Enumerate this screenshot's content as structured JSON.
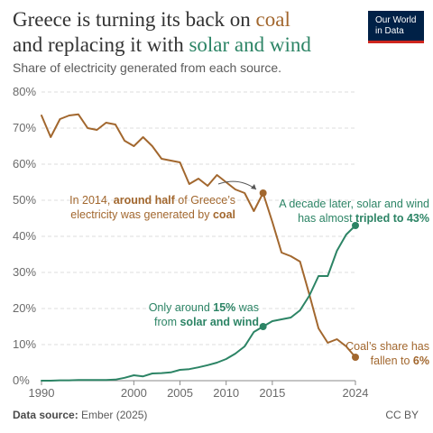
{
  "header": {
    "title_line1_prefix": "Greece is turning its back on ",
    "title_coal": "coal",
    "title_line2_prefix": "and replacing it with ",
    "title_solar": "solar and wind",
    "subtitle": "Share of electricity generated from each source."
  },
  "logo": {
    "line1": "Our World",
    "line2": "in Data"
  },
  "footer": {
    "source_label": "Data source:",
    "source_value": "Ember (2025)",
    "license": "CC BY"
  },
  "colors": {
    "coal": "#a2672e",
    "solar_wind": "#2c8465",
    "grid": "#d9d9d9",
    "text": "#5b5b5b"
  },
  "chart_data": {
    "type": "line",
    "title": "Greece is turning its back on coal and replacing it with solar and wind",
    "subtitle": "Share of electricity generated from each source.",
    "xlabel": "",
    "ylabel": "",
    "xlim": [
      1990,
      2024
    ],
    "ylim": [
      0,
      80
    ],
    "x_ticks": [
      "1990",
      "2000",
      "2005",
      "2010",
      "2015",
      "2024"
    ],
    "y_ticks": [
      "0%",
      "10%",
      "20%",
      "30%",
      "40%",
      "50%",
      "60%",
      "70%",
      "80%"
    ],
    "grid": true,
    "series": [
      {
        "name": "coal",
        "color": "#a2672e",
        "x": [
          1990,
          1991,
          1992,
          1993,
          1994,
          1995,
          1996,
          1997,
          1998,
          1999,
          2000,
          2001,
          2002,
          2003,
          2004,
          2005,
          2006,
          2007,
          2008,
          2009,
          2010,
          2011,
          2012,
          2013,
          2014,
          2015,
          2016,
          2017,
          2018,
          2019,
          2020,
          2021,
          2022,
          2023,
          2024
        ],
        "values": [
          73.5,
          67.5,
          72.5,
          73.5,
          73.8,
          70,
          69.5,
          71.5,
          71,
          66.5,
          65,
          67.5,
          65,
          61.5,
          61,
          60.5,
          54.5,
          56,
          54,
          57,
          55,
          53,
          52,
          47,
          52,
          44,
          35.5,
          34.5,
          33,
          24,
          14.5,
          10.5,
          11.5,
          9.5,
          6.5
        ]
      },
      {
        "name": "solar and wind",
        "color": "#2c8465",
        "x": [
          1990,
          1991,
          1992,
          1993,
          1994,
          1995,
          1996,
          1997,
          1998,
          1999,
          2000,
          2001,
          2002,
          2003,
          2004,
          2005,
          2006,
          2007,
          2008,
          2009,
          2010,
          2011,
          2012,
          2013,
          2014,
          2015,
          2016,
          2017,
          2018,
          2019,
          2020,
          2021,
          2022,
          2023,
          2024
        ],
        "values": [
          0,
          0,
          0.1,
          0.1,
          0.2,
          0.2,
          0.2,
          0.2,
          0.3,
          0.8,
          1.5,
          1.2,
          2,
          2.1,
          2.3,
          3,
          3.2,
          3.7,
          4.3,
          5,
          6,
          7.5,
          9.5,
          13.5,
          15,
          16.5,
          17,
          17.5,
          19.5,
          23.5,
          29,
          29,
          36,
          40.5,
          43
        ]
      }
    ],
    "highlighted_points": [
      {
        "series": "coal",
        "x": 2014,
        "y": 52
      },
      {
        "series": "coal",
        "x": 2024,
        "y": 6.5
      },
      {
        "series": "solar and wind",
        "x": 2014,
        "y": 15
      },
      {
        "series": "solar and wind",
        "x": 2024,
        "y": 43
      }
    ],
    "annotations": {
      "coal_2014": {
        "l1a": "In 2014, ",
        "l1b": "around half",
        "l1c": " of Greece’s",
        "l2a": "electricity was generated by ",
        "l2b": "coal"
      },
      "solar_2014": {
        "l1a": "Only around ",
        "l1b": "15%",
        "l1c": " was",
        "l2a": "from ",
        "l2b": "solar and wind"
      },
      "solar_2024": {
        "l1": "A decade later, solar and wind",
        "l2a": "has almost ",
        "l2b": "tripled to 43%"
      },
      "coal_2024": {
        "l1": "Coal’s share has",
        "l2a": "fallen to ",
        "l2b": "6%"
      }
    }
  }
}
